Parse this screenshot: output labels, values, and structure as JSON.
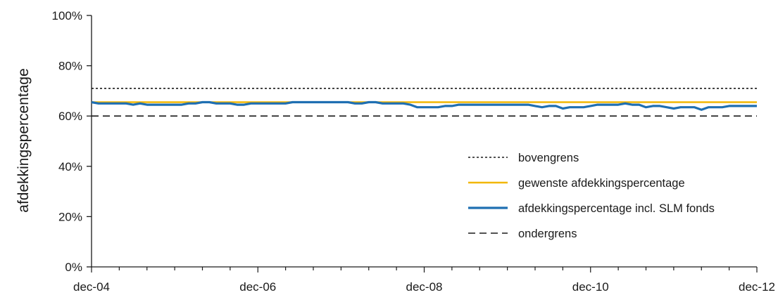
{
  "colors": {
    "background": "#ffffff",
    "axis": "#1a1a1a",
    "bovengrens": "#1a1a1a",
    "gewenste": "#f2b705",
    "afdekking": "#1f6fb2",
    "ondergrens": "#1a1a1a"
  },
  "chart_data": {
    "type": "line",
    "title": "",
    "xlabel": "",
    "ylabel": "afdekkingspercentage",
    "ylim": [
      0,
      100
    ],
    "yticks": [
      "0%",
      "20%",
      "40%",
      "60%",
      "80%",
      "100%"
    ],
    "ytick_values": [
      0,
      20,
      40,
      60,
      80,
      100
    ],
    "xlim": [
      0,
      96
    ],
    "xticks": [
      "dec-04",
      "dec-06",
      "dec-08",
      "dec-10",
      "dec-12"
    ],
    "xtick_values": [
      0,
      24,
      48,
      72,
      96
    ],
    "grid": false,
    "legend_placement": "center-right",
    "series": [
      {
        "name": "bovengrens",
        "style": "dotted",
        "color": "#1a1a1a",
        "x": [
          0,
          96
        ],
        "values": [
          71,
          71
        ]
      },
      {
        "name": "gewenste afdekkingspercentage",
        "style": "solid",
        "color": "#f2b705",
        "x": [
          0,
          96
        ],
        "values": [
          65.5,
          65.5
        ]
      },
      {
        "name": "afdekkingspercentage incl. SLM fonds",
        "style": "solid-thick",
        "color": "#1f6fb2",
        "x_start": 0,
        "x_step": 1,
        "values": [
          65.5,
          65,
          65,
          65,
          65,
          65,
          64.5,
          65,
          64.5,
          64.5,
          64.5,
          64.5,
          64.5,
          64.5,
          65,
          65,
          65.5,
          65.5,
          65,
          65,
          65,
          64.5,
          64.5,
          65,
          65,
          65,
          65,
          65,
          65,
          65.5,
          65.5,
          65.5,
          65.5,
          65.5,
          65.5,
          65.5,
          65.5,
          65.5,
          65,
          65,
          65.5,
          65.5,
          65,
          65,
          65,
          65,
          64.5,
          63.5,
          63.5,
          63.5,
          63.5,
          64,
          64,
          64.5,
          64.5,
          64.5,
          64.5,
          64.5,
          64.5,
          64.5,
          64.5,
          64.5,
          64.5,
          64.5,
          64,
          63.5,
          64,
          64,
          63,
          63.5,
          63.5,
          63.5,
          64,
          64.5,
          64.5,
          64.5,
          64.5,
          65,
          64.5,
          64.5,
          63.5,
          64,
          64,
          63.5,
          63,
          63.5,
          63.5,
          63.5,
          62.5,
          63.5,
          63.5,
          63.5,
          64,
          64,
          64,
          64,
          64
        ]
      },
      {
        "name": "ondergrens",
        "style": "dashed",
        "color": "#1a1a1a",
        "x": [
          0,
          96
        ],
        "values": [
          60,
          60
        ]
      }
    ]
  }
}
